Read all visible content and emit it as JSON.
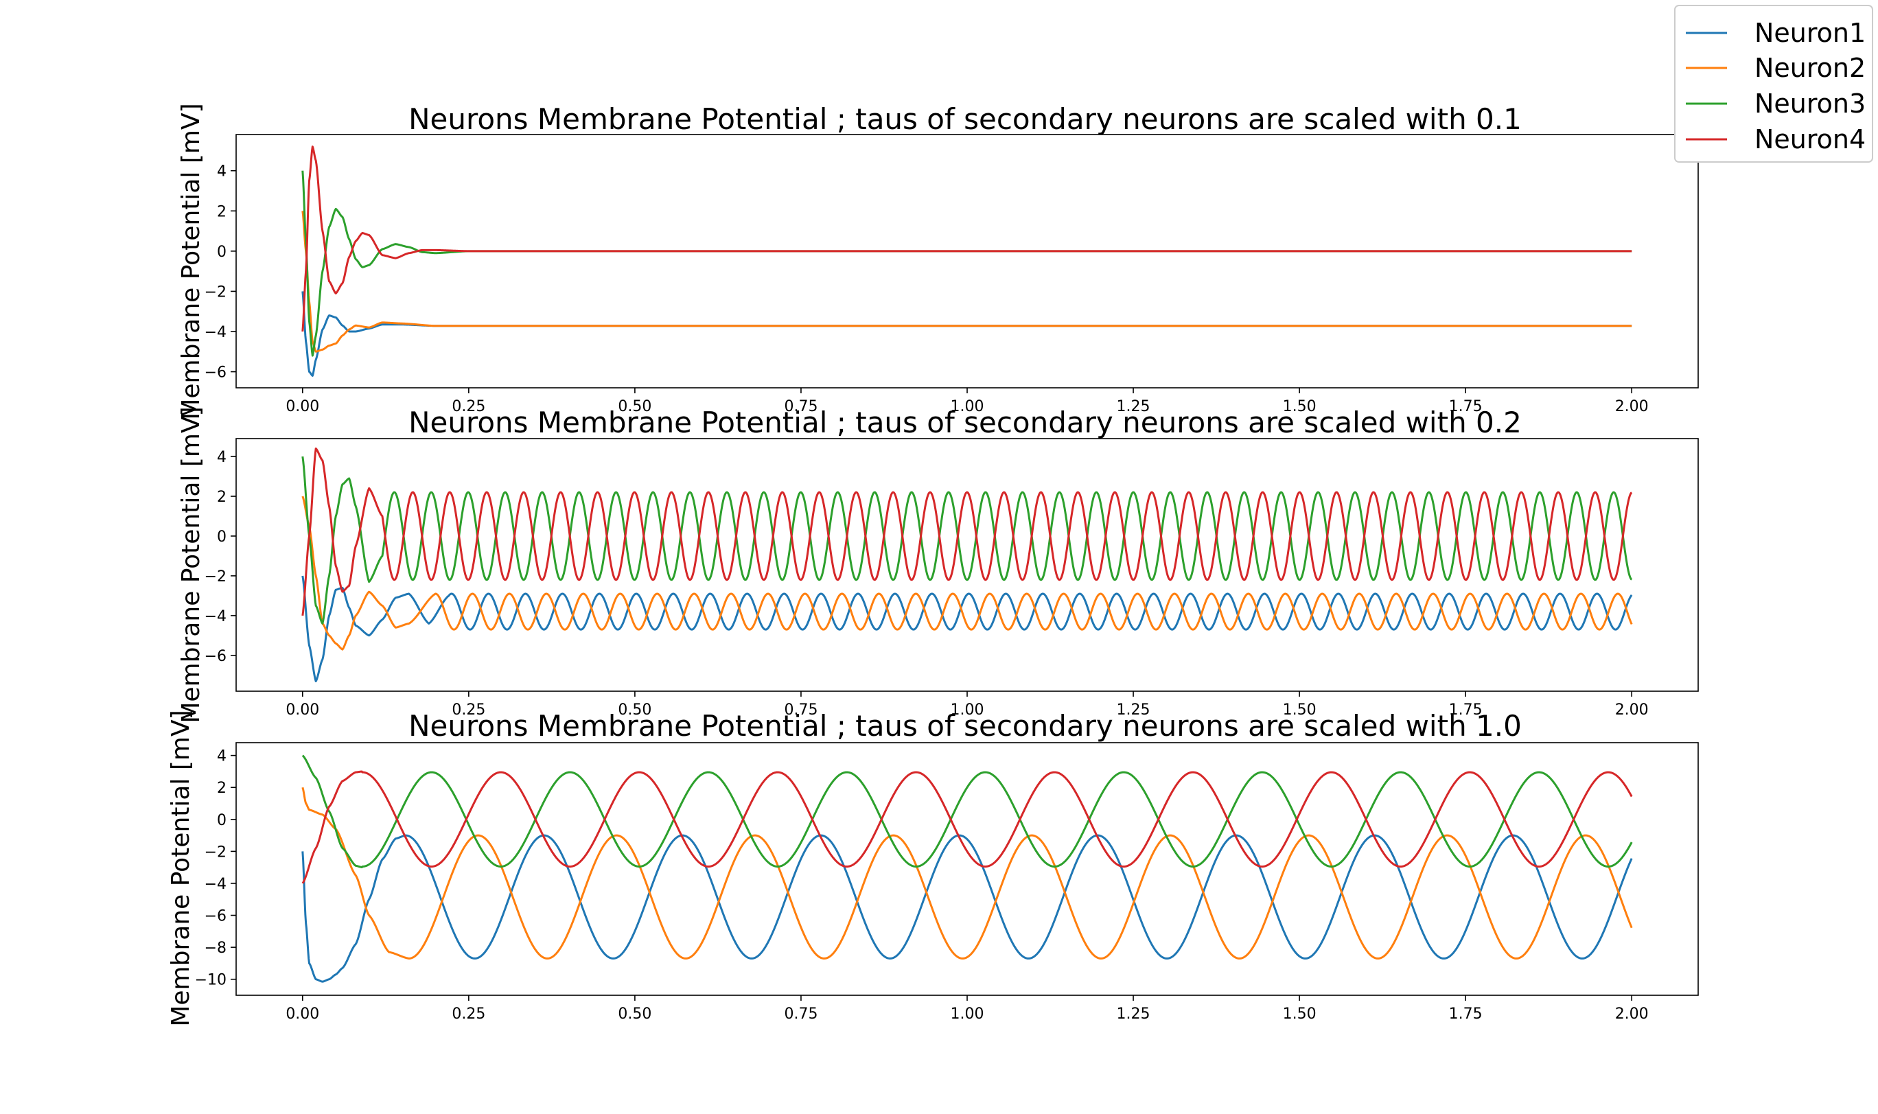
{
  "legend": {
    "placement": "top-right (figure)",
    "entries": [
      {
        "name": "Neuron1",
        "color": "#1f77b4"
      },
      {
        "name": "Neuron2",
        "color": "#ff7f0e"
      },
      {
        "name": "Neuron3",
        "color": "#2ca02c"
      },
      {
        "name": "Neuron4",
        "color": "#d62728"
      }
    ]
  },
  "chart_data": [
    {
      "type": "line",
      "title": "Neurons Membrane Potential ; taus of secondary neurons are scaled with 0.1",
      "xlabel": "",
      "ylabel": "Membrane Potential [mV]",
      "xlim": [
        -0.1,
        2.1
      ],
      "ylim": [
        -6.8,
        5.8
      ],
      "xticks": [
        "0.00",
        "0.25",
        "0.50",
        "0.75",
        "1.00",
        "1.25",
        "1.50",
        "1.75",
        "2.00"
      ],
      "yticks": [
        "−6",
        "−4",
        "−2",
        "0",
        "2",
        "4"
      ],
      "grid": false,
      "series": [
        {
          "name": "Neuron1",
          "color": "#1f77b4",
          "x": [
            0,
            0.005,
            0.01,
            0.015,
            0.02,
            0.03,
            0.04,
            0.05,
            0.06,
            0.07,
            0.08,
            0.1,
            0.12,
            0.15,
            0.2,
            0.25,
            0.3,
            2.0
          ],
          "y": [
            -2.0,
            -4.5,
            -6.0,
            -6.2,
            -5.4,
            -3.9,
            -3.2,
            -3.3,
            -3.7,
            -4.0,
            -4.0,
            -3.85,
            -3.65,
            -3.65,
            -3.72,
            -3.72,
            -3.72,
            -3.72
          ]
        },
        {
          "name": "Neuron2",
          "color": "#ff7f0e",
          "x": [
            0,
            0.005,
            0.01,
            0.015,
            0.02,
            0.03,
            0.04,
            0.05,
            0.06,
            0.07,
            0.08,
            0.1,
            0.12,
            0.15,
            0.2,
            0.25,
            2.0
          ],
          "y": [
            2.0,
            0.0,
            -2.5,
            -4.5,
            -5.0,
            -4.9,
            -4.7,
            -4.6,
            -4.2,
            -3.9,
            -3.7,
            -3.8,
            -3.55,
            -3.6,
            -3.72,
            -3.72,
            -3.72
          ]
        },
        {
          "name": "Neuron3",
          "color": "#2ca02c",
          "x": [
            0,
            0.005,
            0.01,
            0.015,
            0.02,
            0.03,
            0.04,
            0.05,
            0.06,
            0.07,
            0.08,
            0.09,
            0.1,
            0.12,
            0.14,
            0.16,
            0.18,
            0.2,
            0.25,
            0.3,
            2.0
          ],
          "y": [
            4.0,
            0.5,
            -3.5,
            -5.2,
            -4.2,
            -1.0,
            1.2,
            2.1,
            1.7,
            0.6,
            -0.4,
            -0.8,
            -0.7,
            0.1,
            0.35,
            0.2,
            -0.05,
            -0.1,
            0.0,
            0.0,
            0.0
          ]
        },
        {
          "name": "Neuron4",
          "color": "#d62728",
          "x": [
            0,
            0.005,
            0.01,
            0.015,
            0.02,
            0.03,
            0.04,
            0.05,
            0.06,
            0.07,
            0.08,
            0.09,
            0.1,
            0.12,
            0.14,
            0.16,
            0.18,
            0.2,
            0.25,
            0.3,
            2.0
          ],
          "y": [
            -4.0,
            -1.0,
            3.5,
            5.2,
            4.5,
            1.0,
            -1.5,
            -2.1,
            -1.6,
            -0.3,
            0.5,
            0.9,
            0.8,
            -0.2,
            -0.35,
            -0.1,
            0.05,
            0.05,
            0.0,
            0.0,
            0.0
          ]
        }
      ]
    },
    {
      "type": "line",
      "title": "Neurons Membrane Potential ; taus of secondary neurons are scaled with 0.2",
      "xlabel": "",
      "ylabel": "Membrane Potential [mV]",
      "xlim": [
        -0.1,
        2.1
      ],
      "ylim": [
        -7.8,
        4.9
      ],
      "xticks": [
        "0.00",
        "0.25",
        "0.50",
        "0.75",
        "1.00",
        "1.25",
        "1.50",
        "1.75",
        "2.00"
      ],
      "yticks": [
        "−6",
        "−4",
        "−2",
        "0",
        "2",
        "4"
      ],
      "grid": false,
      "series": [
        {
          "name": "Neuron1",
          "color": "#1f77b4",
          "x": [
            0,
            0.01,
            0.02,
            0.03,
            0.04,
            0.05,
            0.06,
            0.07,
            0.08,
            0.1,
            0.12,
            0.14,
            0.16,
            0.19,
            0.22,
            2.0
          ],
          "y": [
            -2.0,
            -5.5,
            -7.3,
            -6.2,
            -4.0,
            -2.7,
            -2.6,
            -3.6,
            -4.5,
            -5.0,
            -4.2,
            -3.1,
            -2.9,
            -4.4,
            -3.0,
            -4.0
          ],
          "oscillation": {
            "from": 0.22,
            "mean": -3.8,
            "amplitude": 0.9,
            "period": 0.0556
          }
        },
        {
          "name": "Neuron2",
          "color": "#ff7f0e",
          "x": [
            0,
            0.01,
            0.02,
            0.03,
            0.04,
            0.05,
            0.06,
            0.07,
            0.08,
            0.1,
            0.12,
            0.14,
            0.16,
            0.2,
            2.0
          ],
          "y": [
            2.0,
            0.5,
            -2.0,
            -4.4,
            -5.0,
            -5.4,
            -5.7,
            -5.0,
            -4.0,
            -2.8,
            -3.5,
            -4.6,
            -4.4,
            -2.9,
            -4.0
          ],
          "oscillation": {
            "from": 0.2,
            "mean": -3.8,
            "amplitude": 0.9,
            "period": 0.0556
          }
        },
        {
          "name": "Neuron3",
          "color": "#2ca02c",
          "x": [
            0,
            0.01,
            0.02,
            0.03,
            0.04,
            0.05,
            0.06,
            0.07,
            0.08,
            0.1,
            0.12,
            2.0
          ],
          "y": [
            4.0,
            0.0,
            -3.5,
            -4.4,
            -2.0,
            1.0,
            2.6,
            2.9,
            1.5,
            -2.3,
            -1.0,
            1.5
          ],
          "oscillation": {
            "from": 0.12,
            "mean": 0.0,
            "amplitude": 2.2,
            "period": 0.0556
          }
        },
        {
          "name": "Neuron4",
          "color": "#d62728",
          "x": [
            0,
            0.01,
            0.02,
            0.03,
            0.04,
            0.05,
            0.06,
            0.07,
            0.08,
            0.1,
            0.12,
            2.0
          ],
          "y": [
            -4.0,
            0.0,
            4.4,
            3.8,
            1.5,
            -1.5,
            -2.8,
            -2.5,
            -0.5,
            2.4,
            1.0,
            -1.5
          ],
          "oscillation": {
            "from": 0.12,
            "mean": 0.0,
            "amplitude": 2.2,
            "period": 0.0556
          }
        }
      ]
    },
    {
      "type": "line",
      "title": "Neurons Membrane Potential ; taus of secondary neurons are scaled with 1.0",
      "xlabel": "",
      "ylabel": "Membrane Potential [mV]",
      "xlim": [
        -0.1,
        2.1
      ],
      "ylim": [
        -11.0,
        4.8
      ],
      "xticks": [
        "0.00",
        "0.25",
        "0.50",
        "0.75",
        "1.00",
        "1.25",
        "1.50",
        "1.75",
        "2.00"
      ],
      "yticks": [
        "−10",
        "−8",
        "−6",
        "−4",
        "−2",
        "0",
        "2",
        "4"
      ],
      "grid": false,
      "series": [
        {
          "name": "Neuron1",
          "color": "#1f77b4",
          "x": [
            0,
            0.005,
            0.01,
            0.02,
            0.03,
            0.04,
            0.05,
            0.06,
            0.08,
            0.1,
            0.12,
            0.14,
            0.155,
            2.0
          ],
          "y": [
            -2.0,
            -6.5,
            -9.0,
            -10.0,
            -10.15,
            -10.0,
            -9.7,
            -9.3,
            -7.8,
            -5.0,
            -2.5,
            -1.2,
            -1.0,
            -1.8
          ],
          "oscillation": {
            "from": 0.155,
            "mean": -4.85,
            "amplitude": 3.85,
            "period": 0.2083
          }
        },
        {
          "name": "Neuron2",
          "color": "#ff7f0e",
          "x": [
            0,
            0.005,
            0.01,
            0.03,
            0.05,
            0.08,
            0.1,
            0.13,
            0.16,
            2.0
          ],
          "y": [
            2.0,
            1.0,
            0.6,
            0.3,
            -0.6,
            -3.5,
            -6.0,
            -8.3,
            -8.7,
            -7.2
          ],
          "oscillation": {
            "from": 0.16,
            "mean": -4.85,
            "amplitude": 3.85,
            "period": 0.2083
          }
        },
        {
          "name": "Neuron3",
          "color": "#2ca02c",
          "x": [
            0,
            0.02,
            0.04,
            0.06,
            0.08,
            0.09,
            2.0
          ],
          "y": [
            4.0,
            2.6,
            0.5,
            -1.8,
            -2.9,
            -3.0,
            -1.2
          ],
          "oscillation": {
            "from": 0.09,
            "mean": 0.0,
            "amplitude": 2.95,
            "period": 0.2083
          }
        },
        {
          "name": "Neuron4",
          "color": "#d62728",
          "x": [
            0,
            0.02,
            0.04,
            0.06,
            0.08,
            0.09,
            2.0
          ],
          "y": [
            -4.0,
            -1.8,
            0.8,
            2.4,
            2.95,
            3.0,
            1.3
          ],
          "oscillation": {
            "from": 0.09,
            "mean": 0.0,
            "amplitude": 2.95,
            "period": 0.2083
          }
        }
      ]
    }
  ]
}
